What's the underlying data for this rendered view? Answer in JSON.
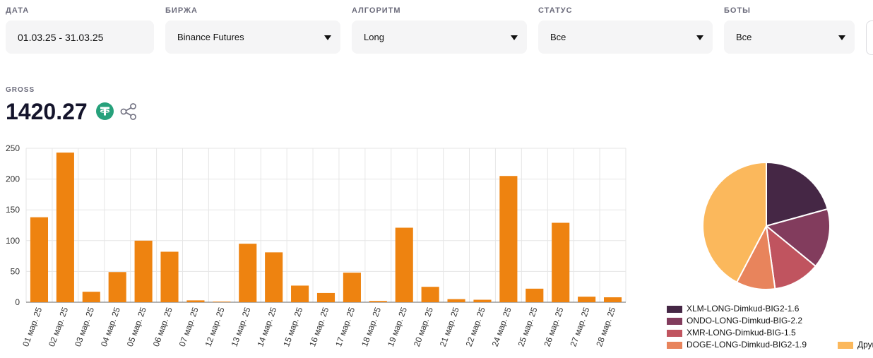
{
  "filters": {
    "date": {
      "label": "ДАТА",
      "value": "01.03.25 - 31.03.25"
    },
    "exchange": {
      "label": "БИРЖА",
      "value": "Binance Futures"
    },
    "algorithm": {
      "label": "АЛГОРИТМ",
      "value": "Long"
    },
    "status": {
      "label": "СТАТУС",
      "value": "Все"
    },
    "bots": {
      "label": "БОТЫ",
      "value": "Все"
    }
  },
  "gross": {
    "label": "GROSS",
    "value": "1420.27"
  },
  "icons": {
    "currency": "tether-icon",
    "share": "share-icon",
    "dropdown": "caret-down-icon"
  },
  "colors": {
    "bar": "#ee8310",
    "currency": "#26a17b",
    "slices": [
      "#452745",
      "#823c5d",
      "#c0545f",
      "#e8845c",
      "#fbb85c"
    ]
  },
  "chart_data": [
    {
      "type": "bar",
      "categories": [
        "01 мар. 25",
        "02 мар. 25",
        "03 мар. 25",
        "04 мар. 25",
        "05 мар. 25",
        "06 мар. 25",
        "07 мар. 25",
        "12 мар. 25",
        "13 мар. 25",
        "14 мар. 25",
        "15 мар. 25",
        "16 мар. 25",
        "17 мар. 25",
        "18 мар. 25",
        "19 мар. 25",
        "20 мар. 25",
        "21 мар. 25",
        "22 мар. 25",
        "24 мар. 25",
        "25 мар. 25",
        "26 мар. 25",
        "27 мар. 25",
        "28 мар. 25"
      ],
      "values": [
        138,
        243,
        17,
        49,
        100,
        82,
        3,
        1,
        95,
        81,
        27,
        15,
        48,
        2,
        121,
        25,
        5,
        4,
        205,
        22,
        129,
        9,
        8
      ],
      "yticks": [
        0,
        50,
        100,
        150,
        200,
        250
      ],
      "ylim": [
        0,
        250
      ],
      "grid": true
    },
    {
      "type": "pie",
      "labels": [
        "XLM-LONG-Dimkud-BIG2-1.6",
        "ONDO-LONG-Dimkud-BIG-2.2",
        "XMR-LONG-Dimkud-BIG-1.5",
        "DOGE-LONG-Dimkud-BIG2-1.9",
        "Другие"
      ],
      "values": [
        20.7,
        15.2,
        11.9,
        9.9,
        42.3
      ],
      "legend": "bottom"
    }
  ]
}
